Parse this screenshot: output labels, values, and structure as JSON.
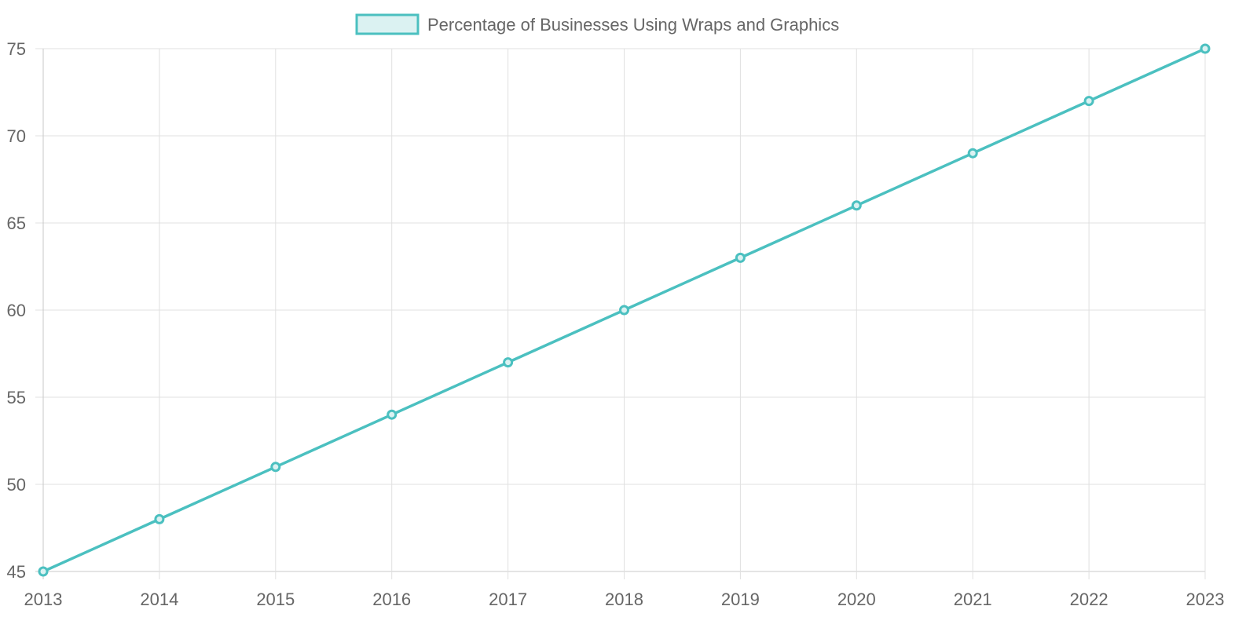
{
  "chart_data": {
    "type": "line",
    "title": "",
    "xlabel": "",
    "ylabel": "",
    "categories": [
      "2013",
      "2014",
      "2015",
      "2016",
      "2017",
      "2018",
      "2019",
      "2020",
      "2021",
      "2022",
      "2023"
    ],
    "series": [
      {
        "name": "Percentage of Businesses Using Wraps and Graphics",
        "values": [
          45,
          48,
          51,
          54,
          57,
          60,
          63,
          66,
          69,
          72,
          75
        ]
      }
    ],
    "ylim": [
      45,
      75
    ],
    "yticks": [
      45,
      50,
      55,
      60,
      65,
      70,
      75
    ],
    "grid": true,
    "legend_position": "top",
    "colors": {
      "line": "#4BC0C0",
      "fill": "#DBF2F2",
      "grid": "#E0E0E0",
      "axis": "#C8C8C8",
      "text": "#666666"
    }
  }
}
